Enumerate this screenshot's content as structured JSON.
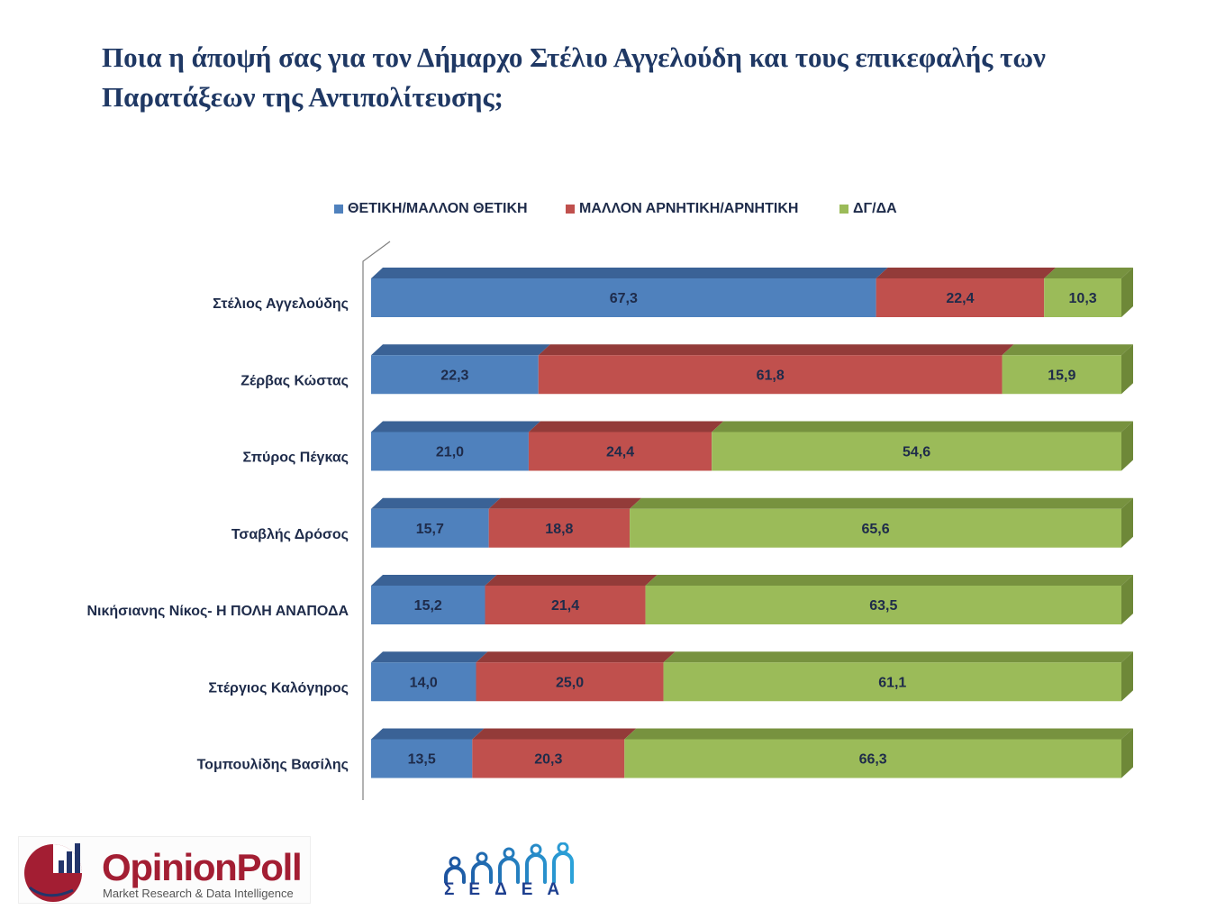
{
  "chart_data": {
    "type": "bar",
    "orientation": "horizontal",
    "stacking": "percent",
    "title": [
      "Ποια η άποψή σας για τον Δήμαρχο Στέλιο Αγγελούδη και τους επικεφαλής των",
      "Παρατάξεων της Αντιπολίτευσης;"
    ],
    "categories": [
      "Στέλιος Αγγελούδης",
      "Ζέρβας Κώστας",
      "Σπύρος Πέγκας",
      "Τσαβλής Δρόσος",
      "Νικήσιανης Νίκος- Η ΠΟΛΗ ΑΝΑΠΟΔΑ",
      "Στέργιος Καλόγηρος",
      "Τομπουλίδης Βασίλης"
    ],
    "series": [
      {
        "name": "ΘΕΤΙΚΗ/ΜΑΛΛΟΝ ΘΕΤΙΚΗ",
        "values": [
          67.3,
          22.3,
          21.0,
          15.7,
          15.2,
          14.0,
          13.5
        ],
        "color": "#4F81BD",
        "top_color": "#3A6296"
      },
      {
        "name": "ΜΑΛΛΟΝ ΑΡΝΗΤΙΚΗ/ΑΡΝΗΤΙΚΗ",
        "values": [
          22.4,
          61.8,
          24.4,
          18.8,
          21.4,
          25.0,
          20.3
        ],
        "color": "#C0504D",
        "top_color": "#933B39"
      },
      {
        "name": "ΔΓ/ΔΑ",
        "values": [
          10.3,
          15.9,
          54.6,
          65.6,
          63.5,
          61.1,
          66.3
        ],
        "color": "#9BBB59",
        "top_color": "#77923F",
        "side_color": "#6E8838"
      }
    ],
    "data_labels": true,
    "legend": "top",
    "grid": false,
    "xlim": [
      0,
      100
    ]
  },
  "theme": {
    "title_color": "#1F3864",
    "label_color": "#1E2B4A",
    "wall_color": "#7F7F7F"
  },
  "logos": {
    "opinion_poll": {
      "brand": "OpinionPoll",
      "tagline": "Market Research & Data Intelligence",
      "red": "#A31E33",
      "navy": "#22356B"
    },
    "sedea": {
      "brand": "ΣΕΔΕΑ",
      "color_dark": "#1B4F9C",
      "color_light": "#2CA6DC"
    }
  }
}
